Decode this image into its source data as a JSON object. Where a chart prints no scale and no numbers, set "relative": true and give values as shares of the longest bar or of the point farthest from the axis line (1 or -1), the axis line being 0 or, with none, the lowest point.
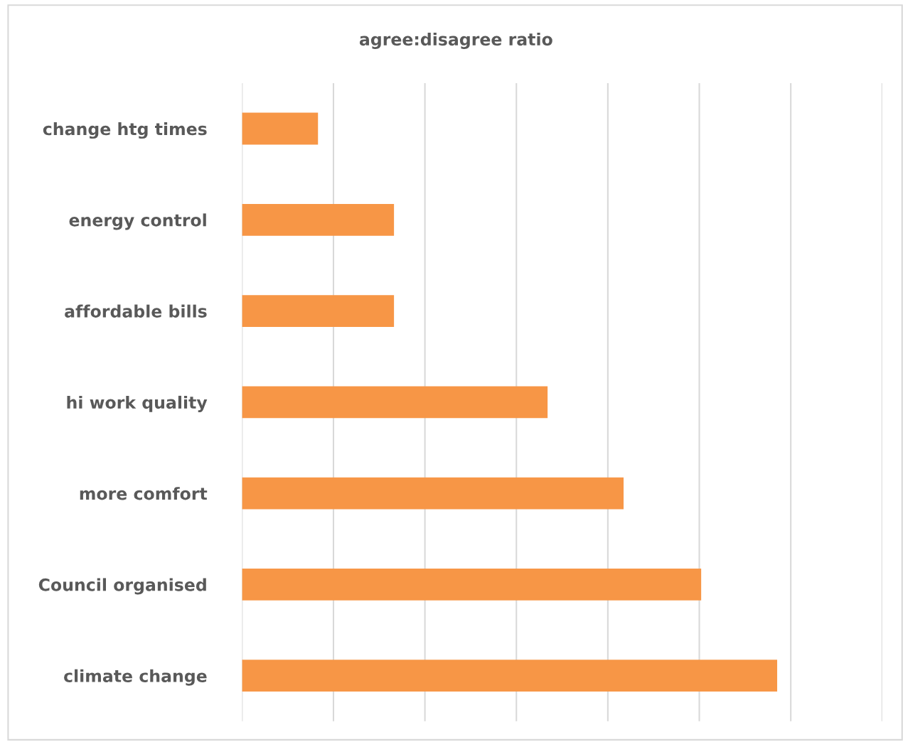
{
  "chart_data": {
    "type": "bar",
    "orientation": "horizontal",
    "relative": true,
    "title": "agree:disagree ratio",
    "categories": [
      "change htg times",
      "energy control",
      "affordable bills",
      "hi work quality",
      "more comfort",
      "Council organised",
      "climate change"
    ],
    "values": [
      0.142,
      0.284,
      0.284,
      0.571,
      0.713,
      0.858,
      1.0
    ],
    "color": "#f79646",
    "grid": "x",
    "legend": false
  }
}
